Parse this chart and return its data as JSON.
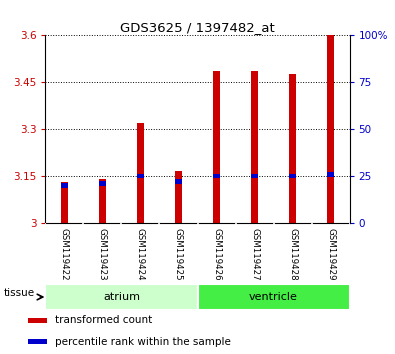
{
  "title": "GDS3625 / 1397482_at",
  "samples": [
    "GSM119422",
    "GSM119423",
    "GSM119424",
    "GSM119425",
    "GSM119426",
    "GSM119427",
    "GSM119428",
    "GSM119429"
  ],
  "transformed_counts": [
    3.13,
    3.14,
    3.32,
    3.165,
    3.485,
    3.485,
    3.475,
    3.6
  ],
  "percentile_ranks": [
    20,
    21,
    25,
    22,
    25,
    25,
    25,
    26
  ],
  "ylim_left": [
    3.0,
    3.6
  ],
  "ylim_right": [
    0,
    100
  ],
  "yticks_left": [
    3.0,
    3.15,
    3.3,
    3.45,
    3.6
  ],
  "yticks_right": [
    0,
    25,
    50,
    75,
    100
  ],
  "ytick_labels_left": [
    "3",
    "3.15",
    "3.3",
    "3.45",
    "3.6"
  ],
  "ytick_labels_right": [
    "0",
    "25",
    "50",
    "75",
    "100%"
  ],
  "groups": [
    {
      "name": "atrium",
      "indices": [
        0,
        1,
        2,
        3
      ],
      "color": "#ccffcc"
    },
    {
      "name": "ventricle",
      "indices": [
        4,
        5,
        6,
        7
      ],
      "color": "#44ee44"
    }
  ],
  "bar_color": "#cc0000",
  "percentile_color": "#0000cc",
  "bar_width": 0.18,
  "base_value": 3.0,
  "background_color": "#ffffff",
  "plot_bg_color": "#ffffff",
  "grid_color": "#000000",
  "sample_bg_color": "#cccccc",
  "tissue_label": "tissue",
  "legend_items": [
    {
      "label": "transformed count",
      "color": "#cc0000"
    },
    {
      "label": "percentile rank within the sample",
      "color": "#0000cc"
    }
  ]
}
